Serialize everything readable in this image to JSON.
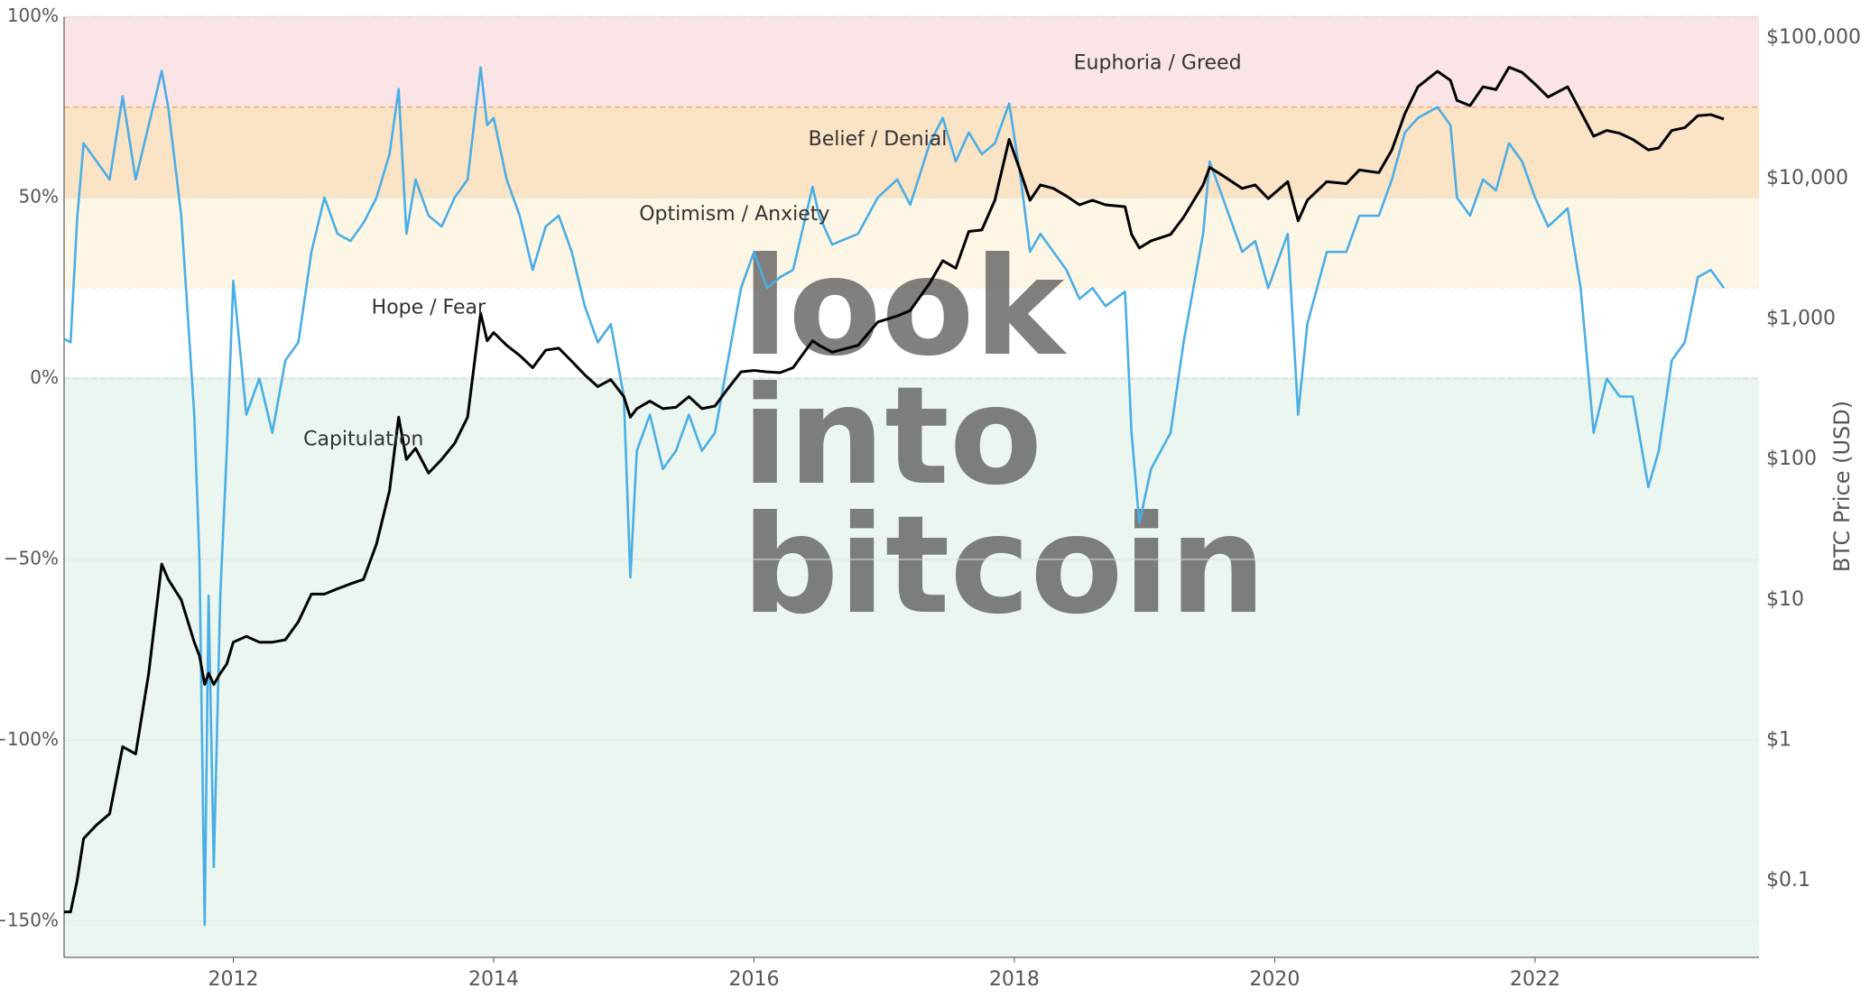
{
  "chart_data": {
    "type": "line",
    "x": [
      2010.7,
      2010.75,
      2010.8,
      2010.85,
      2010.95,
      2011.05,
      2011.15,
      2011.25,
      2011.35,
      2011.45,
      2011.5,
      2011.6,
      2011.7,
      2011.74,
      2011.78,
      2011.81,
      2011.85,
      2011.9,
      2011.95,
      2012.0,
      2012.1,
      2012.2,
      2012.3,
      2012.4,
      2012.5,
      2012.6,
      2012.7,
      2012.8,
      2012.9,
      2013.0,
      2013.1,
      2013.2,
      2013.27,
      2013.33,
      2013.4,
      2013.5,
      2013.6,
      2013.7,
      2013.8,
      2013.9,
      2013.95,
      2014.0,
      2014.1,
      2014.2,
      2014.3,
      2014.4,
      2014.5,
      2014.6,
      2014.7,
      2014.8,
      2014.9,
      2015.0,
      2015.05,
      2015.1,
      2015.2,
      2015.3,
      2015.4,
      2015.5,
      2015.6,
      2015.7,
      2015.8,
      2015.9,
      2016.0,
      2016.1,
      2016.2,
      2016.3,
      2016.45,
      2016.5,
      2016.6,
      2016.8,
      2016.95,
      2017.1,
      2017.2,
      2017.35,
      2017.45,
      2017.55,
      2017.65,
      2017.75,
      2017.85,
      2017.96,
      2018.05,
      2018.12,
      2018.2,
      2018.3,
      2018.4,
      2018.5,
      2018.6,
      2018.7,
      2018.85,
      2018.9,
      2018.96,
      2019.05,
      2019.2,
      2019.3,
      2019.45,
      2019.5,
      2019.6,
      2019.75,
      2019.85,
      2019.95,
      2020.1,
      2020.18,
      2020.25,
      2020.4,
      2020.55,
      2020.65,
      2020.8,
      2020.9,
      2021.0,
      2021.1,
      2021.25,
      2021.35,
      2021.4,
      2021.5,
      2021.6,
      2021.7,
      2021.8,
      2021.9,
      2022.0,
      2022.1,
      2022.25,
      2022.35,
      2022.45,
      2022.55,
      2022.65,
      2022.75,
      2022.87,
      2022.95,
      2023.05,
      2023.15,
      2023.25,
      2023.35,
      2023.45
    ],
    "xlim": [
      2010.7,
      2023.72
    ],
    "xticks": [
      2012,
      2014,
      2016,
      2018,
      2020,
      2022
    ],
    "ylim": [
      -160,
      100
    ],
    "yticks": [
      {
        "value": 100,
        "label": "100%"
      },
      {
        "value": 50,
        "label": "50%"
      },
      {
        "value": 0,
        "label": "0%"
      },
      {
        "value": -50,
        "label": "−50%"
      },
      {
        "value": -100,
        "label": "−100%"
      },
      {
        "value": -150,
        "label": "−150%"
      }
    ],
    "y2lim": [
      0.0285,
      142000
    ],
    "y2_log": true,
    "y2ticks": [
      {
        "value": 100000,
        "label": "$100,000"
      },
      {
        "value": 10000,
        "label": "$10,000"
      },
      {
        "value": 1000,
        "label": "$1,000"
      },
      {
        "value": 100,
        "label": "$100"
      },
      {
        "value": 10,
        "label": "$10"
      },
      {
        "value": 1,
        "label": "$1"
      },
      {
        "value": 0.1,
        "label": "$0.1"
      }
    ],
    "y2_label": "BTC Price (USD)",
    "grid": true,
    "bands": [
      {
        "name": "Euphoria / Greed",
        "from": 75,
        "to": 100,
        "color": "#fbe4e5",
        "edge": "#f2a3a6"
      },
      {
        "name": "Belief / Denial",
        "from": 50,
        "to": 75,
        "color": "#fbe3c5",
        "edge": "#efa45c"
      },
      {
        "name": "Optimism / Anxiety",
        "from": 25,
        "to": 50,
        "color": "#fdf6e5",
        "edge": "#f7e2b8"
      },
      {
        "name": "Hope / Fear",
        "from": 0,
        "to": 25,
        "color": "#ffffff",
        "edge": "#f3ecd8"
      },
      {
        "name": "Capitulation",
        "from": -160,
        "to": 0,
        "color": "#eaf6ef",
        "edge": "#6fb27f"
      }
    ],
    "watermark": [
      "look",
      "into",
      "bitcoin"
    ],
    "series": [
      {
        "color": "#4aaee6",
        "axis": "y",
        "values": [
          11,
          10,
          44,
          65,
          60,
          55,
          78,
          55,
          70,
          85,
          75,
          45,
          -10,
          -50,
          -151,
          -60,
          -135,
          -60,
          -20,
          27,
          -10,
          0,
          -15,
          5,
          10,
          35,
          50,
          40,
          38,
          43,
          50,
          62,
          80,
          40,
          55,
          45,
          42,
          50,
          55,
          86,
          70,
          72,
          55,
          45,
          30,
          42,
          45,
          35,
          20,
          10,
          15,
          -5,
          -55,
          -20,
          -10,
          -25,
          -20,
          -10,
          -20,
          -15,
          5,
          25,
          35,
          25,
          28,
          30,
          53,
          45,
          37,
          40,
          50,
          55,
          48,
          65,
          72,
          60,
          68,
          62,
          65,
          76,
          55,
          35,
          40,
          35,
          30,
          22,
          25,
          20,
          24,
          -15,
          -40,
          -25,
          -15,
          10,
          40,
          60,
          50,
          35,
          38,
          25,
          40,
          -10,
          15,
          35,
          35,
          45,
          45,
          55,
          68,
          72,
          75,
          70,
          50,
          45,
          55,
          52,
          65,
          60,
          50,
          42,
          47,
          25,
          -15,
          0,
          -5,
          -5,
          -30,
          -20,
          5,
          10,
          28,
          30,
          25
        ]
      },
      {
        "color": "#000000",
        "axis": "y2",
        "values": [
          0.06,
          0.06,
          0.1,
          0.2,
          0.25,
          0.3,
          0.9,
          0.8,
          3,
          18,
          14,
          10,
          5,
          4,
          2.5,
          3,
          2.5,
          3,
          3.5,
          5,
          5.5,
          5,
          5,
          5.2,
          7,
          11,
          11,
          12,
          13,
          14,
          25,
          60,
          200,
          100,
          120,
          80,
          100,
          130,
          200,
          1100,
          700,
          800,
          650,
          550,
          450,
          600,
          620,
          500,
          400,
          330,
          370,
          280,
          200,
          230,
          260,
          230,
          235,
          280,
          230,
          240,
          320,
          420,
          430,
          420,
          415,
          450,
          700,
          650,
          580,
          650,
          950,
          1050,
          1150,
          1800,
          2600,
          2300,
          4200,
          4300,
          7000,
          19000,
          11000,
          7000,
          9000,
          8500,
          7500,
          6500,
          7000,
          6500,
          6300,
          4000,
          3200,
          3600,
          4000,
          5300,
          9000,
          12000,
          10500,
          8500,
          9000,
          7200,
          9500,
          5000,
          7000,
          9500,
          9200,
          11500,
          11000,
          16000,
          29000,
          45000,
          58000,
          50000,
          36000,
          33000,
          45000,
          43000,
          62000,
          57000,
          47000,
          38000,
          45000,
          30000,
          20000,
          22000,
          21000,
          19000,
          16000,
          16500,
          22000,
          23000,
          28000,
          28500,
          26500
        ]
      }
    ]
  }
}
